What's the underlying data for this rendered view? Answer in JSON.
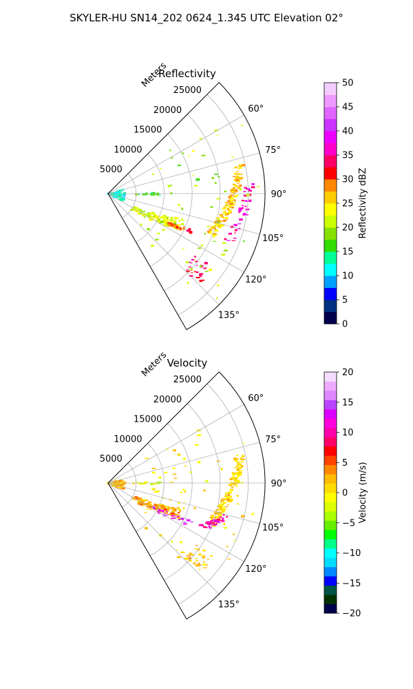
{
  "figure": {
    "suptitle": "SKYLER-HU  SN14_202  0624_1.345 UTC Elevation 02°"
  },
  "chart_data": [
    {
      "type": "heatmap",
      "title": "Reflectivity",
      "radial_axis_label": "Meters",
      "radial_ticks": [
        "5000",
        "10000",
        "15000",
        "20000",
        "25000"
      ],
      "radial_max": 28000,
      "azimuth_range": [
        45,
        150
      ],
      "azimuth_ticks": [
        "60°",
        "75°",
        "90°",
        "105°",
        "120°",
        "135°"
      ],
      "grid": true,
      "colorbar": {
        "label": "Reflectivity dBZ",
        "range": [
          0,
          50
        ],
        "ticks": [
          "0",
          "5",
          "10",
          "15",
          "20",
          "25",
          "30",
          "35",
          "40",
          "45",
          "50"
        ],
        "colors": [
          "#00004c",
          "#003080",
          "#0000ff",
          "#00a0ff",
          "#00ffff",
          "#00ff99",
          "#33dd00",
          "#88e000",
          "#ccff00",
          "#ffff00",
          "#ffcc00",
          "#ff8800",
          "#ff0000",
          "#ff0066",
          "#ff00cc",
          "#ee00ff",
          "#cc33ff",
          "#e066ff",
          "#ee99ff",
          "#f5ccff"
        ]
      },
      "echo_regions": [
        {
          "region": "near-radar clutter",
          "azimuth_deg": [
            75,
            118
          ],
          "range_m": [
            0,
            3000
          ],
          "value": 12
        },
        {
          "region": "eastern spur at 90°",
          "azimuth_deg": [
            89,
            92
          ],
          "range_m": [
            4500,
            9500
          ],
          "value": 15
        },
        {
          "region": "southeast band",
          "azimuth_deg": [
            108,
            125
          ],
          "range_m": [
            5000,
            14500
          ],
          "value": 22
        },
        {
          "region": "bright core in southeast band",
          "azimuth_deg": [
            113,
            118
          ],
          "range_m": [
            12000,
            16500
          ],
          "value": 30
        },
        {
          "region": "curved line north-south",
          "azimuth_deg": [
            78,
            112
          ],
          "range_m": [
            16000,
            24000
          ],
          "value": 26
        },
        {
          "region": "intense cells along line",
          "azimuth_deg": [
            85,
            112
          ],
          "range_m": [
            21000,
            25500
          ],
          "value": 36
        },
        {
          "region": "southern cells",
          "azimuth_deg": [
            125,
            135
          ],
          "range_m": [
            19000,
            23000
          ],
          "value": 34
        },
        {
          "region": "scattered echoes",
          "azimuth_deg": [
            55,
            140
          ],
          "range_m": [
            8000,
            27000
          ],
          "value": 20
        }
      ]
    },
    {
      "type": "heatmap",
      "title": "Velocity",
      "radial_axis_label": "Meters",
      "radial_ticks": [
        "5000",
        "10000",
        "15000",
        "20000",
        "25000"
      ],
      "radial_max": 28000,
      "azimuth_range": [
        45,
        150
      ],
      "azimuth_ticks": [
        "60°",
        "75°",
        "90°",
        "105°",
        "120°",
        "135°"
      ],
      "grid": true,
      "colorbar": {
        "label": "Velocity (m/s)",
        "range": [
          -20,
          20
        ],
        "ticks": [
          "−20",
          "−15",
          "−10",
          "−5",
          "0",
          "5",
          "10",
          "15",
          "20"
        ],
        "colors": [
          "#00004c",
          "#003300",
          "#005544",
          "#0000ff",
          "#0088ff",
          "#00ddff",
          "#00ffff",
          "#00ff88",
          "#00ff00",
          "#66ee00",
          "#aaff00",
          "#ddff00",
          "#ffff00",
          "#ffdd00",
          "#ffbb00",
          "#ff8800",
          "#ff4400",
          "#ff0000",
          "#ff0066",
          "#ff00aa",
          "#ff00dd",
          "#dd00ff",
          "#bb44ff",
          "#dd88ff",
          "#eeaaff",
          "#f5ddff"
        ]
      },
      "echo_regions": [
        {
          "region": "near-radar clutter",
          "azimuth_deg": [
            75,
            118
          ],
          "range_m": [
            0,
            3000
          ],
          "value": 2
        },
        {
          "region": "eastern spur at 90°",
          "azimuth_deg": [
            89,
            92
          ],
          "range_m": [
            4500,
            9500
          ],
          "value": -2
        },
        {
          "region": "southeast band",
          "azimuth_deg": [
            108,
            125
          ],
          "range_m": [
            5000,
            14500
          ],
          "value": 3
        },
        {
          "region": "outbound core in southeast band",
          "azimuth_deg": [
            113,
            122
          ],
          "range_m": [
            9000,
            16500
          ],
          "value": 14
        },
        {
          "region": "curved line north-south",
          "azimuth_deg": [
            78,
            112
          ],
          "range_m": [
            16000,
            24000
          ],
          "value": 1
        },
        {
          "region": "outbound cells along line",
          "azimuth_deg": [
            105,
            115
          ],
          "range_m": [
            16000,
            22000
          ],
          "value": 10
        },
        {
          "region": "southern cells",
          "azimuth_deg": [
            125,
            135
          ],
          "range_m": [
            19000,
            23000
          ],
          "value": 2
        },
        {
          "region": "scattered echoes",
          "azimuth_deg": [
            55,
            140
          ],
          "range_m": [
            8000,
            27000
          ],
          "value": 0
        }
      ]
    }
  ]
}
